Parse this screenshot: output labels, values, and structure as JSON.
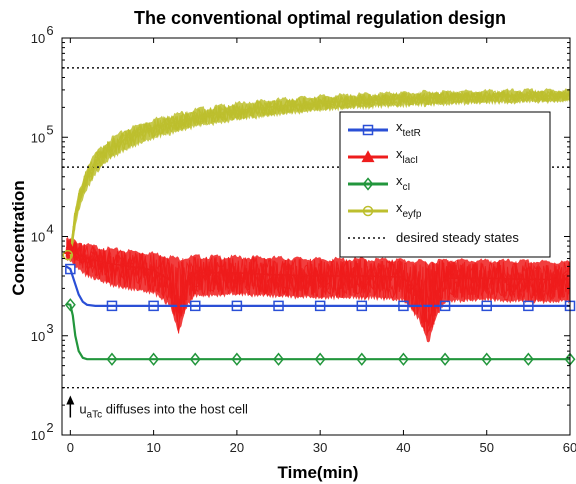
{
  "chart_data": {
    "type": "line",
    "title": "The conventional optimal regulation design",
    "xlabel": "Time(min)",
    "ylabel": "Concentration",
    "xlim": [
      -1,
      60
    ],
    "ylim": [
      100,
      1000000
    ],
    "yscale": "log",
    "grid": false,
    "legend_position": "top-right",
    "x_ticks": [
      0,
      10,
      20,
      30,
      40,
      50,
      60
    ],
    "y_ticks": [
      {
        "value": 100,
        "base": "10",
        "exp": "2"
      },
      {
        "value": 1000,
        "base": "10",
        "exp": "3"
      },
      {
        "value": 10000,
        "base": "10",
        "exp": "4"
      },
      {
        "value": 100000,
        "base": "10",
        "exp": "5"
      },
      {
        "value": 1000000,
        "base": "10",
        "exp": "6"
      }
    ],
    "series": [
      {
        "name": "x_tetR",
        "legend_base": "x",
        "legend_sub": "tetR",
        "color": "#2a4fd6",
        "marker": "square",
        "x": [
          -0.5,
          0,
          0.5,
          1,
          1.5,
          2,
          3,
          5,
          10,
          15,
          20,
          25,
          30,
          35,
          40,
          45,
          50,
          55,
          60
        ],
        "y": [
          5000,
          4700,
          3500,
          2600,
          2200,
          2050,
          2000,
          2000,
          2000,
          2000,
          2000,
          2000,
          2000,
          2000,
          2000,
          2000,
          2000,
          2000,
          2000
        ],
        "marker_x": [
          0,
          5,
          10,
          15,
          20,
          25,
          30,
          35,
          40,
          45,
          50,
          55,
          60
        ]
      },
      {
        "name": "x_lacI",
        "legend_base": "x",
        "legend_sub": "lacI",
        "color": "#ee1c1c",
        "marker": "triangle",
        "x": [
          -0.5,
          0,
          1,
          2,
          5,
          10,
          12,
          13,
          14,
          15,
          20,
          25,
          30,
          35,
          40,
          42,
          43,
          44,
          45,
          50,
          55,
          60
        ],
        "y": [
          7800,
          7500,
          6500,
          6000,
          5300,
          4600,
          3600,
          1900,
          3600,
          4300,
          4300,
          4100,
          4000,
          4000,
          3900,
          2400,
          1300,
          2800,
          3800,
          3800,
          3700,
          3700
        ],
        "band_low": [
          6000,
          5700,
          4600,
          4000,
          3200,
          2700,
          2000,
          1050,
          2000,
          2500,
          2600,
          2500,
          2400,
          2400,
          2300,
          1400,
          830,
          1600,
          2200,
          2300,
          2200,
          2200
        ],
        "band_high": [
          9500,
          9300,
          8800,
          8200,
          7400,
          6800,
          6300,
          6000,
          6200,
          6300,
          6200,
          6100,
          5900,
          5900,
          5800,
          5600,
          5500,
          5700,
          5800,
          5700,
          5600,
          5500
        ],
        "marker_x": [
          0
        ]
      },
      {
        "name": "x_cI",
        "legend_base": "x",
        "legend_sub": "cI",
        "color": "#22963c",
        "marker": "diamond",
        "x": [
          -0.5,
          0,
          0.3,
          0.6,
          1,
          1.5,
          2,
          5,
          10,
          20,
          30,
          40,
          50,
          60
        ],
        "y": [
          2100,
          2050,
          1600,
          1000,
          700,
          600,
          580,
          580,
          580,
          580,
          580,
          580,
          580,
          580
        ],
        "marker_x": [
          0,
          5,
          10,
          15,
          20,
          25,
          30,
          35,
          40,
          45,
          50,
          55,
          60
        ]
      },
      {
        "name": "x_eyfp",
        "legend_base": "x",
        "legend_sub": "eyfp",
        "color": "#bdbf2e",
        "marker": "circle",
        "x": [
          0,
          0.5,
          1,
          2,
          3,
          4,
          5,
          7,
          10,
          15,
          20,
          25,
          30,
          35,
          40,
          45,
          50,
          55,
          60
        ],
        "y": [
          6500,
          14000,
          23000,
          40000,
          55000,
          68000,
          80000,
          100000,
          125000,
          160000,
          185000,
          205000,
          222000,
          235000,
          245000,
          252000,
          257000,
          262000,
          265000
        ],
        "band_low": [
          5500,
          11000,
          18000,
          30000,
          42000,
          53000,
          62000,
          78000,
          98000,
          128000,
          150000,
          170000,
          187000,
          199000,
          208000,
          215000,
          221000,
          226000,
          230000
        ],
        "band_high": [
          7500,
          17000,
          28000,
          50000,
          68000,
          84000,
          98000,
          122000,
          152000,
          190000,
          218000,
          240000,
          258000,
          270000,
          280000,
          287000,
          292000,
          296000,
          300000
        ],
        "marker_x": [
          -0.3
        ]
      }
    ],
    "reference_lines": {
      "name": "desired steady states",
      "y": [
        500000,
        50000,
        300
      ],
      "style": "dotted",
      "color": "#111111"
    },
    "annotations": [
      {
        "text_base": "u",
        "text_sub": "aTc",
        "text_rest": " diffuses into the host cell",
        "arrow_x": 0,
        "arrow_from_y": 150,
        "arrow_to_y": 250
      }
    ]
  }
}
